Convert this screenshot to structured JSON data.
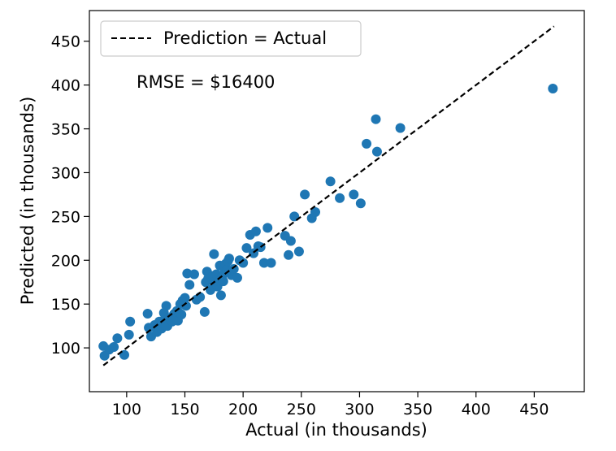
{
  "chart_data": {
    "type": "scatter",
    "xlabel": "Actual (in thousands)",
    "ylabel": "Predicted (in thousands)",
    "xlim": [
      68,
      493
    ],
    "ylim": [
      50,
      485
    ],
    "xticks": [
      100,
      150,
      200,
      250,
      300,
      350,
      400,
      450
    ],
    "yticks": [
      100,
      150,
      200,
      250,
      300,
      350,
      400,
      450
    ],
    "grid": false,
    "legend": {
      "location": "top-left",
      "entries": [
        "Prediction = Actual"
      ]
    },
    "annotation": "RMSE = $16400",
    "colors": {
      "points": "#1f77b4",
      "line": "#000000"
    },
    "series": [
      {
        "kind": "line",
        "style": "dashed",
        "name": "Prediction = Actual",
        "x": [
          80,
          467
        ],
        "y": [
          80,
          467
        ]
      },
      {
        "kind": "scatter",
        "x": [
          80,
          81,
          85,
          89,
          92,
          98,
          102,
          103,
          118,
          119,
          121,
          124,
          126,
          128,
          130,
          131,
          132,
          133,
          134,
          135,
          136,
          138,
          139,
          140,
          141,
          142,
          143,
          144,
          145,
          146,
          147,
          148,
          149,
          150,
          151,
          152,
          154,
          158,
          160,
          163,
          167,
          168,
          169,
          170,
          172,
          174,
          175,
          176,
          177,
          178,
          179,
          180,
          181,
          182,
          183,
          184,
          185,
          186,
          187,
          188,
          190,
          192,
          195,
          197,
          200,
          203,
          206,
          209,
          211,
          213,
          215,
          218,
          221,
          224,
          236,
          239,
          241,
          244,
          248,
          253,
          259,
          262,
          275,
          283,
          295,
          301,
          306,
          314,
          315,
          335,
          466
        ],
        "y": [
          102,
          91,
          98,
          101,
          111,
          92,
          115,
          130,
          139,
          123,
          113,
          126,
          118,
          130,
          122,
          128,
          140,
          134,
          148,
          125,
          133,
          132,
          130,
          137,
          139,
          134,
          142,
          131,
          140,
          150,
          138,
          154,
          153,
          157,
          148,
          185,
          172,
          184,
          155,
          158,
          141,
          175,
          187,
          179,
          166,
          182,
          207,
          173,
          184,
          170,
          176,
          194,
          160,
          182,
          176,
          190,
          196,
          189,
          199,
          202,
          183,
          190,
          180,
          200,
          197,
          214,
          229,
          208,
          233,
          216,
          215,
          197,
          237,
          197,
          228,
          206,
          222,
          250,
          210,
          275,
          248,
          255,
          290,
          271,
          275,
          265,
          333,
          361,
          324,
          351,
          396
        ]
      }
    ]
  }
}
